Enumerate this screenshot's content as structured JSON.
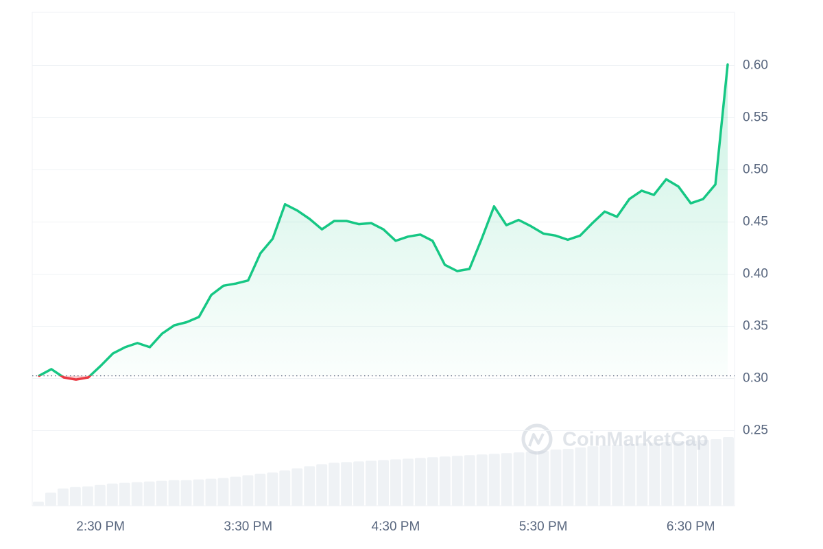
{
  "chart_data": {
    "type": "line",
    "watermark": "CoinMarketCap",
    "categories": [
      null,
      null,
      null,
      null,
      null,
      "2:30 PM",
      null,
      null,
      null,
      null,
      null,
      null,
      null,
      null,
      null,
      null,
      null,
      "3:30 PM",
      null,
      null,
      null,
      null,
      null,
      null,
      null,
      null,
      null,
      null,
      null,
      "4:30 PM",
      null,
      null,
      null,
      null,
      null,
      null,
      null,
      null,
      null,
      null,
      null,
      "5:30 PM",
      null,
      null,
      null,
      null,
      null,
      null,
      null,
      null,
      null,
      null,
      null,
      "6:30 PM",
      null,
      null,
      null
    ],
    "series": [
      {
        "name": "Price",
        "color": "#16c784",
        "below_color": "#ea3943",
        "values": [
          0.3026,
          0.309,
          0.301,
          0.299,
          0.301,
          0.312,
          0.324,
          0.33,
          0.334,
          0.33,
          0.343,
          0.351,
          0.354,
          0.359,
          0.38,
          0.389,
          0.391,
          0.394,
          0.42,
          0.434,
          0.467,
          0.461,
          0.453,
          0.443,
          0.451,
          0.451,
          0.448,
          0.449,
          0.443,
          0.432,
          0.436,
          0.438,
          0.432,
          0.409,
          0.403,
          0.405,
          0.434,
          0.465,
          0.447,
          0.452,
          0.446,
          0.439,
          0.437,
          0.433,
          0.437,
          0.449,
          0.46,
          0.455,
          0.472,
          0.48,
          0.476,
          0.491,
          0.484,
          0.468,
          0.472,
          0.486,
          0.601
        ]
      },
      {
        "name": "Volume",
        "color": "#eff2f5",
        "values": [
          6,
          19,
          25,
          27,
          28,
          30,
          32,
          33,
          34,
          35,
          36,
          37,
          37,
          38,
          39,
          40,
          42,
          44,
          46,
          48,
          51,
          54,
          57,
          60,
          62,
          63,
          64,
          65,
          66,
          67,
          68,
          69,
          70,
          71,
          72,
          73,
          74,
          75,
          76,
          77,
          78,
          79,
          81,
          82,
          84,
          86,
          87,
          88,
          89,
          90,
          91,
          92,
          93,
          94,
          95,
          96,
          99
        ]
      }
    ],
    "ylim": [
      0.178,
      0.651
    ],
    "yticks": [
      {
        "value": 0.25,
        "label": "0.25"
      },
      {
        "value": 0.3,
        "label": "0.30"
      },
      {
        "value": 0.35,
        "label": "0.35"
      },
      {
        "value": 0.4,
        "label": "0.40"
      },
      {
        "value": 0.45,
        "label": "0.45"
      },
      {
        "value": 0.5,
        "label": "0.50"
      },
      {
        "value": 0.55,
        "label": "0.55"
      },
      {
        "value": 0.6,
        "label": "0.60"
      }
    ],
    "grid": true
  }
}
